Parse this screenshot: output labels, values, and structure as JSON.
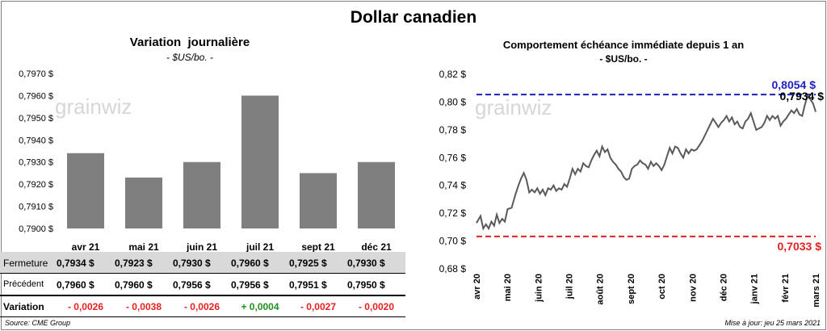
{
  "title": "Dollar canadien",
  "footer": {
    "source": "Source: CME Group",
    "updated": "Mise à jour: jeu 25 mars 2021"
  },
  "watermark": "grainwiz",
  "colors": {
    "bar": "#7f7f7f",
    "line": "#595959",
    "high": "#1f1fbf",
    "low": "#e52020",
    "positive": "#1f8f1f",
    "negative": "#e52020",
    "table_header": "#d9d9d9"
  },
  "chart_data": [
    {
      "type": "bar",
      "title": "Variation  journalière",
      "subtitle": "- $US/bo. -",
      "categories": [
        "avr 21",
        "mai 21",
        "juin 21",
        "juil 21",
        "sept 21",
        "déc 21"
      ],
      "values": [
        0.7934,
        0.7923,
        0.793,
        0.796,
        0.7925,
        0.793
      ],
      "ylim": [
        0.79,
        0.797
      ],
      "yticks": [
        "0,7970 $",
        "0,7960 $",
        "0,7950 $",
        "0,7940 $",
        "0,7930 $",
        "0,7920 $",
        "0,7910 $",
        "0,7900 $"
      ],
      "grid": false,
      "table": {
        "rows": [
          {
            "label": "Fermeture",
            "values": [
              "0,7934",
              "0,7923",
              "0,7930",
              "0,7960",
              "0,7925",
              "0,7930"
            ],
            "unit": "$"
          },
          {
            "label": "Précédent",
            "values": [
              "0,7960",
              "0,7960",
              "0,7956",
              "0,7956",
              "0,7951",
              "0,7950"
            ],
            "unit": "$"
          },
          {
            "label": "Variation",
            "values": [
              "- 0,0026",
              "- 0,0038",
              "- 0,0026",
              "+ 0,0004",
              "- 0,0027",
              "- 0,0020"
            ],
            "signs": [
              "neg",
              "neg",
              "neg",
              "pos",
              "neg",
              "neg"
            ]
          }
        ]
      }
    },
    {
      "type": "line",
      "title": "Comportement échéance immédiate depuis 1 an",
      "subtitle": "- $US/bo. -",
      "ylim": [
        0.68,
        0.82
      ],
      "yticks": [
        "0,82 $",
        "0,80 $",
        "0,78 $",
        "0,76 $",
        "0,74 $",
        "0,72 $",
        "0,70 $",
        "0,68 $"
      ],
      "x_labels": [
        "avr 20",
        "mai 20",
        "juin 20",
        "juil 20",
        "août 20",
        "sept 20",
        "oct 20",
        "nov 20",
        "déc 20",
        "janv 21",
        "févr 21",
        "mars 21"
      ],
      "grid": false,
      "high": {
        "value": 0.8054,
        "label": "0,8054 $"
      },
      "low": {
        "value": 0.7033,
        "label": "0,7033 $"
      },
      "last": {
        "value": 0.7934,
        "label": "0,7934 $"
      },
      "series": {
        "x": [
          0,
          3,
          5,
          7,
          9,
          11,
          13,
          15,
          17,
          19,
          21,
          23,
          26,
          29,
          31,
          33,
          35,
          37,
          39,
          41,
          43,
          45,
          47,
          49,
          51,
          53,
          55,
          57,
          59,
          61,
          63,
          65,
          67,
          69,
          71,
          73,
          75,
          77,
          79,
          81,
          83,
          85,
          87,
          89,
          91,
          93,
          95,
          97,
          99,
          101,
          103,
          105,
          107,
          109,
          111,
          113,
          115,
          117,
          119,
          121,
          123,
          125,
          127,
          129,
          131,
          133,
          135,
          137,
          139,
          141,
          143,
          145,
          147,
          149,
          151,
          153,
          155,
          157,
          159,
          161,
          163,
          165,
          167,
          169,
          171,
          173,
          175,
          177,
          179,
          181,
          183,
          185,
          187,
          189,
          191,
          193,
          195,
          197,
          199,
          201,
          203,
          205,
          207,
          209,
          211,
          213,
          215,
          217,
          219,
          221,
          223,
          225,
          227,
          229,
          231,
          233,
          235,
          237,
          239,
          241,
          243,
          245,
          247,
          249,
          251
        ],
        "y": [
          0.713,
          0.718,
          0.709,
          0.712,
          0.709,
          0.714,
          0.711,
          0.719,
          0.713,
          0.716,
          0.714,
          0.723,
          0.724,
          0.734,
          0.74,
          0.745,
          0.749,
          0.744,
          0.735,
          0.737,
          0.735,
          0.738,
          0.734,
          0.737,
          0.733,
          0.738,
          0.737,
          0.74,
          0.736,
          0.738,
          0.737,
          0.741,
          0.739,
          0.745,
          0.752,
          0.748,
          0.752,
          0.75,
          0.756,
          0.754,
          0.753,
          0.758,
          0.762,
          0.765,
          0.761,
          0.768,
          0.764,
          0.766,
          0.76,
          0.757,
          0.755,
          0.752,
          0.75,
          0.746,
          0.744,
          0.745,
          0.752,
          0.754,
          0.755,
          0.758,
          0.756,
          0.755,
          0.752,
          0.757,
          0.754,
          0.756,
          0.754,
          0.751,
          0.755,
          0.761,
          0.767,
          0.763,
          0.768,
          0.767,
          0.763,
          0.76,
          0.766,
          0.763,
          0.766,
          0.765,
          0.766,
          0.769,
          0.772,
          0.776,
          0.78,
          0.784,
          0.788,
          0.785,
          0.782,
          0.785,
          0.787,
          0.79,
          0.786,
          0.789,
          0.784,
          0.786,
          0.782,
          0.781,
          0.786,
          0.788,
          0.792,
          0.786,
          0.78,
          0.781,
          0.782,
          0.785,
          0.79,
          0.787,
          0.79,
          0.788,
          0.79,
          0.783,
          0.786,
          0.788,
          0.791,
          0.794,
          0.792,
          0.795,
          0.791,
          0.79,
          0.798,
          0.805,
          0.802,
          0.799,
          0.793
        ]
      }
    }
  ]
}
